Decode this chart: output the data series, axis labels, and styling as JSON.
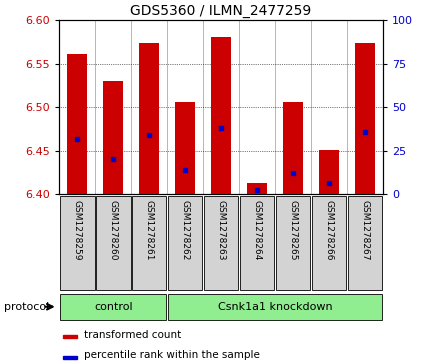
{
  "title": "GDS5360 / ILMN_2477259",
  "samples": [
    "GSM1278259",
    "GSM1278260",
    "GSM1278261",
    "GSM1278262",
    "GSM1278263",
    "GSM1278264",
    "GSM1278265",
    "GSM1278266",
    "GSM1278267"
  ],
  "bar_tops": [
    6.561,
    6.53,
    6.573,
    6.506,
    6.58,
    6.413,
    6.506,
    6.451,
    6.573
  ],
  "bar_bottom": 6.4,
  "blue_positions": [
    6.463,
    6.44,
    6.468,
    6.428,
    6.476,
    6.405,
    6.424,
    6.413,
    6.471
  ],
  "ylim_left": [
    6.4,
    6.6
  ],
  "ylim_right": [
    0,
    100
  ],
  "yticks_left": [
    6.4,
    6.45,
    6.5,
    6.55,
    6.6
  ],
  "yticks_right": [
    0,
    25,
    50,
    75,
    100
  ],
  "bar_color": "#cc0000",
  "blue_color": "#0000cc",
  "group_labels": [
    "control",
    "Csnk1a1 knockdown"
  ],
  "group_starts": [
    0,
    3
  ],
  "group_ends": [
    3,
    9
  ],
  "group_color": "#90ee90",
  "sample_box_color": "#d3d3d3",
  "tick_label_color_left": "#cc0000",
  "tick_label_color_right": "#0000cc",
  "bar_width": 0.55,
  "control_count": 3
}
